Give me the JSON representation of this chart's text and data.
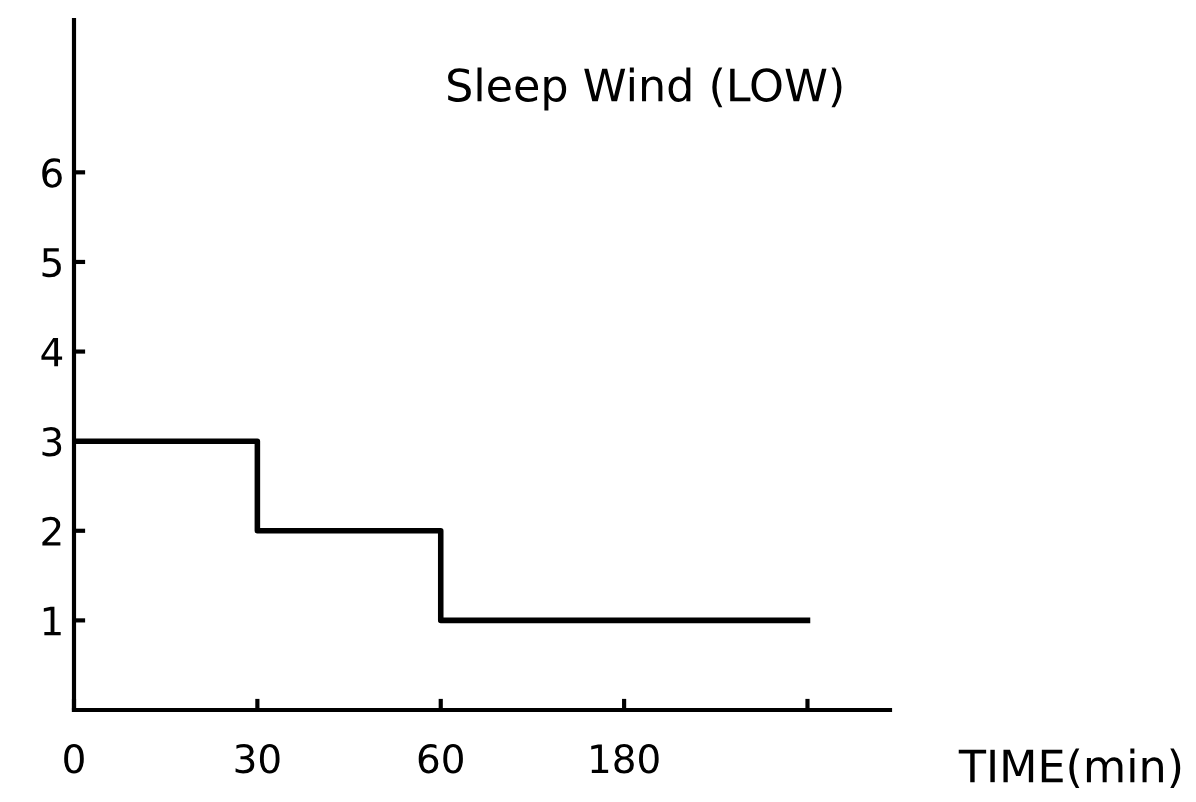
{
  "chart_data": {
    "type": "step",
    "title": "Sleep Wind (LOW)",
    "xlabel": "TIME(min)",
    "categories": [
      "0",
      "30",
      "60",
      "180",
      null
    ],
    "series": [
      {
        "color": "#000000",
        "values": [
          3,
          2,
          1,
          1,
          1
        ]
      }
    ],
    "ylim": [
      0,
      7.7
    ],
    "yticks": [
      1,
      2,
      3,
      4,
      5,
      6
    ],
    "grid": false,
    "legend": false
  }
}
